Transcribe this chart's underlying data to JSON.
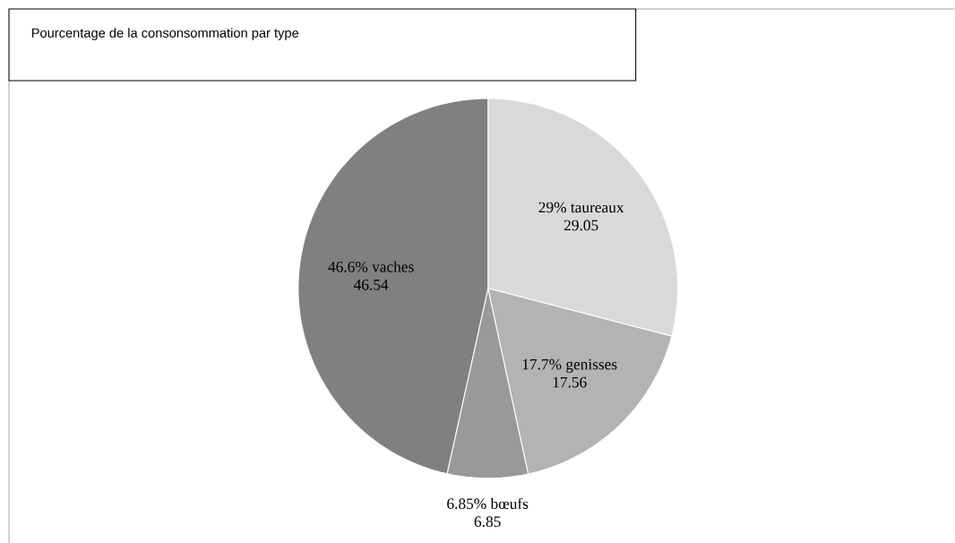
{
  "chart_data": {
    "type": "pie",
    "title": "Pourcentage de la consonsommation par type",
    "categories": [
      "29% taureaux",
      "17.7% genisses",
      "6.85% bœufs",
      "46.6% vaches"
    ],
    "values": [
      29.05,
      17.56,
      6.85,
      46.54
    ],
    "colors": [
      "#d9d9d9",
      "#b3b3b3",
      "#999999",
      "#808080"
    ],
    "data_labels": true
  }
}
